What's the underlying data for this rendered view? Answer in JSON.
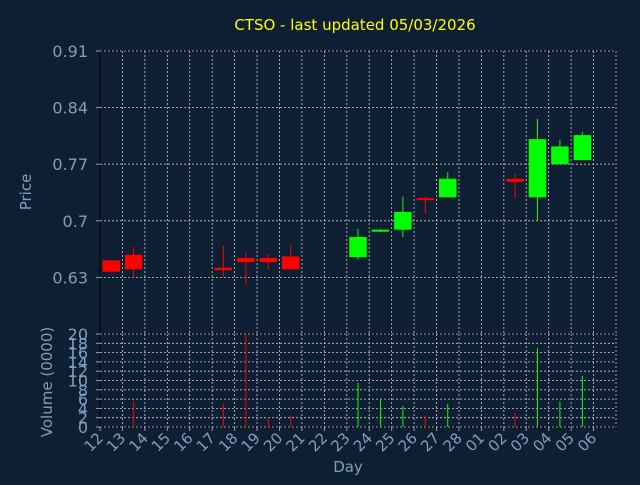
{
  "colors": {
    "background": "#0f1f33",
    "title": "#ffff00",
    "axis_text": "#7f9fbf",
    "grid": "#c8c8c8",
    "up": "#00ff00",
    "down": "#ff0000",
    "frame": "#000000"
  },
  "chart_data": {
    "type": "candlestick",
    "title": "CTSO - last updated 05/03/2026",
    "xlabel": "Day",
    "grid": true,
    "categories": [
      "12",
      "13",
      "14",
      "15",
      "16",
      "17",
      "18",
      "19",
      "20",
      "21",
      "22",
      "23",
      "24",
      "25",
      "26",
      "27",
      "28",
      "01",
      "02",
      "03",
      "04",
      "05",
      "06"
    ],
    "price": {
      "ylabel": "Price",
      "ylim": [
        0.56,
        0.91
      ],
      "ticks": [
        0.91,
        0.84,
        0.77,
        0.7,
        0.63
      ],
      "tick_labels": [
        "0.91",
        "0.84",
        "0.77",
        "0.7",
        "0.63"
      ],
      "candles": [
        {
          "day": "12",
          "open": 0.651,
          "high": 0.652,
          "low": 0.636,
          "close": 0.637
        },
        {
          "day": "13",
          "open": 0.658,
          "high": 0.668,
          "low": 0.63,
          "close": 0.64
        },
        {
          "day": "17",
          "open": 0.642,
          "high": 0.669,
          "low": 0.63,
          "close": 0.639
        },
        {
          "day": "18",
          "open": 0.654,
          "high": 0.66,
          "low": 0.621,
          "close": 0.649
        },
        {
          "day": "19",
          "open": 0.654,
          "high": 0.659,
          "low": 0.64,
          "close": 0.649
        },
        {
          "day": "20",
          "open": 0.656,
          "high": 0.67,
          "low": 0.64,
          "close": 0.64
        },
        {
          "day": "23",
          "open": 0.655,
          "high": 0.69,
          "low": 0.652,
          "close": 0.68
        },
        {
          "day": "24",
          "open": 0.688,
          "high": 0.69,
          "low": 0.686,
          "close": 0.689
        },
        {
          "day": "25",
          "open": 0.689,
          "high": 0.73,
          "low": 0.68,
          "close": 0.711
        },
        {
          "day": "26",
          "open": 0.728,
          "high": 0.73,
          "low": 0.709,
          "close": 0.726
        },
        {
          "day": "27",
          "open": 0.729,
          "high": 0.76,
          "low": 0.729,
          "close": 0.752
        },
        {
          "day": "02",
          "open": 0.752,
          "high": 0.758,
          "low": 0.728,
          "close": 0.748
        },
        {
          "day": "03",
          "open": 0.729,
          "high": 0.826,
          "low": 0.7,
          "close": 0.801
        },
        {
          "day": "04",
          "open": 0.77,
          "high": 0.8,
          "low": 0.77,
          "close": 0.792
        },
        {
          "day": "05",
          "open": 0.775,
          "high": 0.81,
          "low": 0.775,
          "close": 0.806
        }
      ]
    },
    "volume": {
      "ylabel": "Volume (0000)",
      "ylim": [
        0,
        20
      ],
      "ticks": [
        0,
        2,
        4,
        6,
        8,
        10,
        12,
        14,
        16,
        18,
        20
      ],
      "tick_labels": [
        "0",
        "2",
        "4",
        "6",
        "8",
        "10",
        "12",
        "14",
        "16",
        "18",
        "20"
      ],
      "bars": [
        {
          "day": "13",
          "value": 5.5,
          "direction": "down"
        },
        {
          "day": "17",
          "value": 5.0,
          "direction": "down"
        },
        {
          "day": "18",
          "value": 20.0,
          "direction": "down"
        },
        {
          "day": "19",
          "value": 2.0,
          "direction": "down"
        },
        {
          "day": "20",
          "value": 2.5,
          "direction": "down"
        },
        {
          "day": "23",
          "value": 9.5,
          "direction": "up"
        },
        {
          "day": "24",
          "value": 6.0,
          "direction": "up"
        },
        {
          "day": "25",
          "value": 4.5,
          "direction": "up"
        },
        {
          "day": "26",
          "value": 2.5,
          "direction": "down"
        },
        {
          "day": "27",
          "value": 5.0,
          "direction": "up"
        },
        {
          "day": "02",
          "value": 3.0,
          "direction": "down"
        },
        {
          "day": "03",
          "value": 17.0,
          "direction": "up"
        },
        {
          "day": "04",
          "value": 5.5,
          "direction": "up"
        },
        {
          "day": "05",
          "value": 11.0,
          "direction": "up"
        }
      ]
    }
  }
}
